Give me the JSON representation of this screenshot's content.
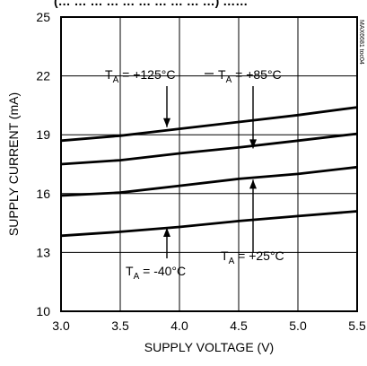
{
  "header_fragment": "(… … … … … … … … … …) ……",
  "chart_data": {
    "type": "line",
    "xlabel": "SUPPLY VOLTAGE (V)",
    "ylabel": "SUPPLY CURRENT (mA)",
    "xlim": [
      3.0,
      5.5
    ],
    "ylim": [
      10,
      25
    ],
    "x_ticks": [
      "3.0",
      "3.5",
      "4.0",
      "4.5",
      "5.0",
      "5.5"
    ],
    "y_ticks": [
      "10",
      "13",
      "16",
      "19",
      "22",
      "25"
    ],
    "grid": true,
    "x": [
      3.0,
      3.5,
      4.0,
      4.5,
      5.0,
      5.5
    ],
    "series": [
      {
        "name": "TA = +125°C",
        "values": [
          18.7,
          18.95,
          19.3,
          19.65,
          20.0,
          20.4
        ]
      },
      {
        "name": "TA = +85°C",
        "values": [
          17.5,
          17.7,
          18.05,
          18.35,
          18.7,
          19.05
        ]
      },
      {
        "name": "TA = +25°C",
        "values": [
          15.9,
          16.05,
          16.4,
          16.75,
          17.0,
          17.35
        ]
      },
      {
        "name": "TA = -40°C",
        "values": [
          13.85,
          14.05,
          14.3,
          14.6,
          14.85,
          15.1
        ]
      }
    ],
    "annotations": {
      "t125": {
        "pre": "T",
        "sub": "A",
        "post": " = +125°C"
      },
      "t85": {
        "pre": "T",
        "sub": "A",
        "post": " = +85°C"
      },
      "t25": {
        "pre": "T",
        "sub": "A",
        "post": " = +25°C"
      },
      "tm40": {
        "pre": "T",
        "sub": "A",
        "post": " = -40°C"
      }
    },
    "side_id": "MAX6681 toc04"
  }
}
